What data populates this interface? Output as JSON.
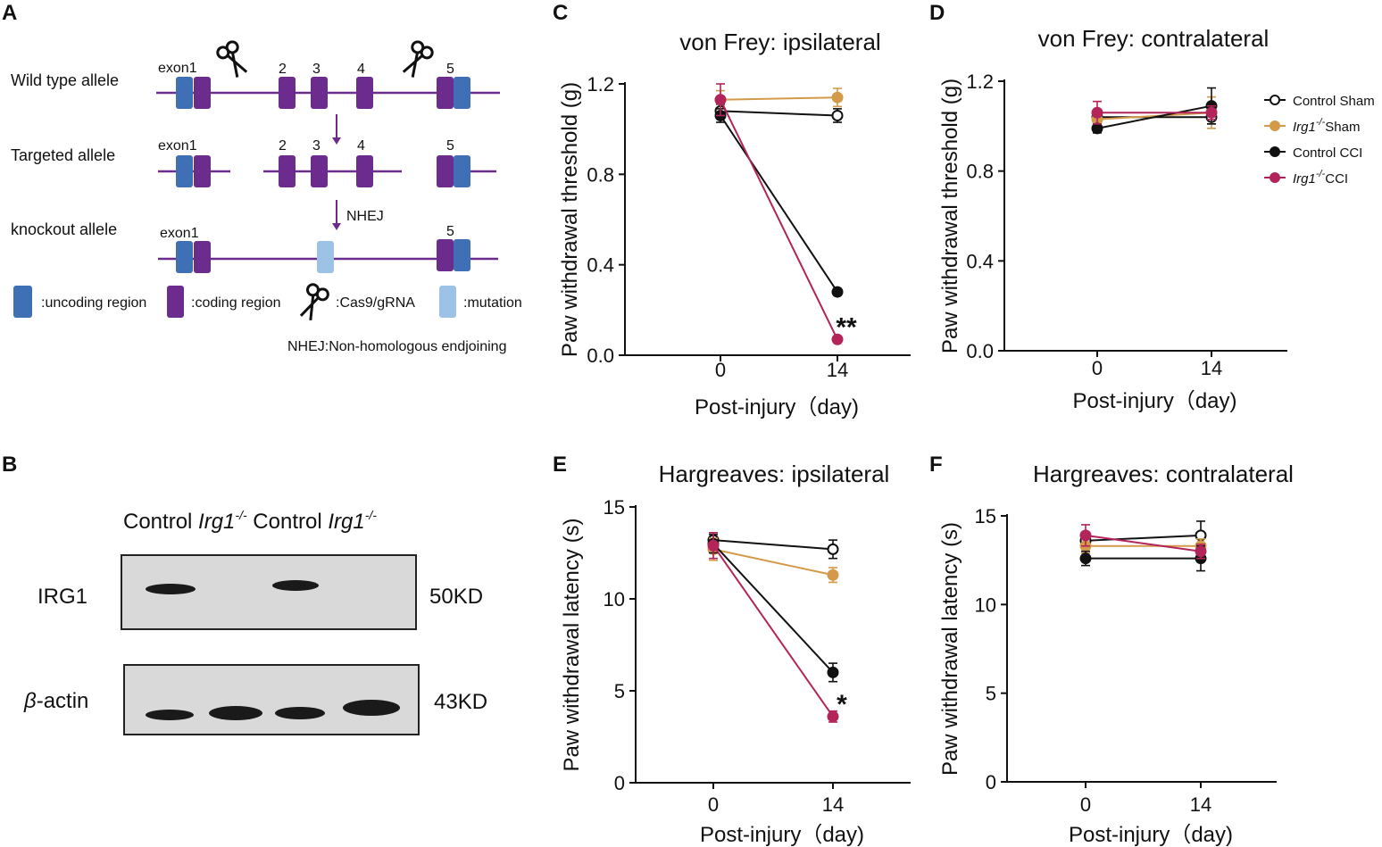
{
  "panels": {
    "A": {
      "letter": "A",
      "alleles": [
        "Wild type allele",
        "Targeted allele",
        "knockout allele"
      ],
      "exon1_label": "exon1",
      "exon_numbers": [
        "2",
        "3",
        "4",
        "5"
      ],
      "step_label": "NHEJ",
      "legend": {
        "uncoding": ":uncoding region",
        "coding": ":coding region",
        "cas9": ":Cas9/gRNA",
        "mutation": ":mutation"
      },
      "footnote": "NHEJ:Non-homologous endjoining",
      "colors": {
        "uncoding": "#3f6fb5",
        "coding": "#6b2c8e",
        "line": "#6b2c8e",
        "mutation": "#9cc3e6"
      }
    },
    "B": {
      "letter": "B",
      "lane_labels": [
        {
          "name": "Control",
          "genotype": ""
        },
        {
          "name": "Irg1",
          "genotype": "-/-"
        },
        {
          "name": "Control",
          "genotype": ""
        },
        {
          "name": "Irg1",
          "genotype": "-/-"
        }
      ],
      "row1_label": "IRG1",
      "row1_size": "50KD",
      "row2_prefix": "β",
      "row2_suffix": "-actin",
      "row2_size": "43KD"
    },
    "C": {
      "letter": "C"
    },
    "D": {
      "letter": "D"
    },
    "E": {
      "letter": "E"
    },
    "F": {
      "letter": "F"
    }
  },
  "legend": [
    {
      "gene": "",
      "sup": "",
      "label": "Control Sham",
      "color": "#111111",
      "filled": false
    },
    {
      "gene": "Irg1",
      "sup": "-/-",
      "label": "Sham",
      "color": "#d39a4a",
      "filled": true
    },
    {
      "gene": "",
      "sup": "",
      "label": "Control CCI",
      "color": "#111111",
      "filled": true
    },
    {
      "gene": "Irg1",
      "sup": "-/-",
      "label": "CCI",
      "color": "#b3245a",
      "filled": true
    }
  ],
  "chart_data": [
    {
      "panel": "C",
      "type": "line",
      "title": "von Frey: ipsilateral",
      "xlabel": "Post-injury（day)",
      "ylabel": "Paw withdrawal threshold (g)",
      "x": [
        0,
        14
      ],
      "xticks": [
        "0",
        "14"
      ],
      "ylim": [
        0,
        1.2
      ],
      "yticks": [
        0,
        0.4,
        0.8,
        1.2
      ],
      "ytick_labels": [
        "0.0",
        "0.4",
        "0.8",
        "1.2"
      ],
      "series": [
        {
          "name": "Control Sham",
          "values": [
            1.08,
            1.06
          ],
          "errors": [
            0.03,
            0.03
          ]
        },
        {
          "name": "Irg1-/- Sham",
          "values": [
            1.13,
            1.14
          ],
          "errors": [
            0.04,
            0.04
          ]
        },
        {
          "name": "Control CCI",
          "values": [
            1.06,
            0.28
          ],
          "errors": [
            0.03,
            0.015
          ]
        },
        {
          "name": "Irg1-/- CCI",
          "values": [
            1.13,
            0.07
          ],
          "errors": [
            0.07,
            0.01
          ]
        }
      ],
      "annotation": {
        "text": "**",
        "x": 14,
        "y": 0.07
      }
    },
    {
      "panel": "D",
      "type": "line",
      "title": "von Frey: contralateral",
      "xlabel": "Post-injury（day)",
      "ylabel": "Paw withdrawal threshold (g)",
      "x": [
        0,
        14
      ],
      "xticks": [
        "0",
        "14"
      ],
      "ylim": [
        0,
        1.2
      ],
      "yticks": [
        0,
        0.4,
        0.8,
        1.2
      ],
      "ytick_labels": [
        "0.0",
        "0.4",
        "0.8",
        "1.2"
      ],
      "series": [
        {
          "name": "Control Sham",
          "values": [
            1.04,
            1.04
          ],
          "errors": [
            0.03,
            0.03
          ]
        },
        {
          "name": "Irg1-/- Sham",
          "values": [
            1.03,
            1.06
          ],
          "errors": [
            0.03,
            0.07
          ]
        },
        {
          "name": "Control CCI",
          "values": [
            0.99,
            1.09
          ],
          "errors": [
            0.02,
            0.08
          ]
        },
        {
          "name": "Irg1-/- CCI",
          "values": [
            1.06,
            1.06
          ],
          "errors": [
            0.05,
            0.03
          ]
        }
      ]
    },
    {
      "panel": "E",
      "type": "line",
      "title": "Hargreaves: ipsilateral",
      "xlabel": "Post-injury（day)",
      "ylabel": "Paw withdrawal latency (s)",
      "x": [
        0,
        14
      ],
      "xticks": [
        "0",
        "14"
      ],
      "ylim": [
        0,
        15
      ],
      "yticks": [
        0,
        5,
        10,
        15
      ],
      "ytick_labels": [
        "0",
        "5",
        "10",
        "15"
      ],
      "series": [
        {
          "name": "Control Sham",
          "values": [
            13.2,
            12.7
          ],
          "errors": [
            0.4,
            0.5
          ]
        },
        {
          "name": "Irg1-/- Sham",
          "values": [
            12.7,
            11.3
          ],
          "errors": [
            0.6,
            0.4
          ]
        },
        {
          "name": "Control CCI",
          "values": [
            13.0,
            6.0
          ],
          "errors": [
            0.5,
            0.5
          ]
        },
        {
          "name": "Irg1-/- CCI",
          "values": [
            12.9,
            3.6
          ],
          "errors": [
            0.7,
            0.3
          ]
        }
      ],
      "annotation": {
        "text": "*",
        "x": 14,
        "y": 3.6
      }
    },
    {
      "panel": "F",
      "type": "line",
      "title": "Hargreaves: contralateral",
      "xlabel": "Post-injury（day)",
      "ylabel": "Paw withdrawal latency (s)",
      "x": [
        0,
        14
      ],
      "xticks": [
        "0",
        "14"
      ],
      "ylim": [
        0,
        15
      ],
      "yticks": [
        0,
        5,
        10,
        15
      ],
      "ytick_labels": [
        "0",
        "5",
        "10",
        "15"
      ],
      "series": [
        {
          "name": "Control Sham",
          "values": [
            13.6,
            13.9
          ],
          "errors": [
            0.4,
            0.8
          ]
        },
        {
          "name": "Irg1-/- Sham",
          "values": [
            13.3,
            13.3
          ],
          "errors": [
            0.4,
            0.4
          ]
        },
        {
          "name": "Control CCI",
          "values": [
            12.6,
            12.6
          ],
          "errors": [
            0.4,
            0.7
          ]
        },
        {
          "name": "Irg1-/- CCI",
          "values": [
            13.9,
            13.0
          ],
          "errors": [
            0.6,
            0.4
          ]
        }
      ]
    }
  ]
}
